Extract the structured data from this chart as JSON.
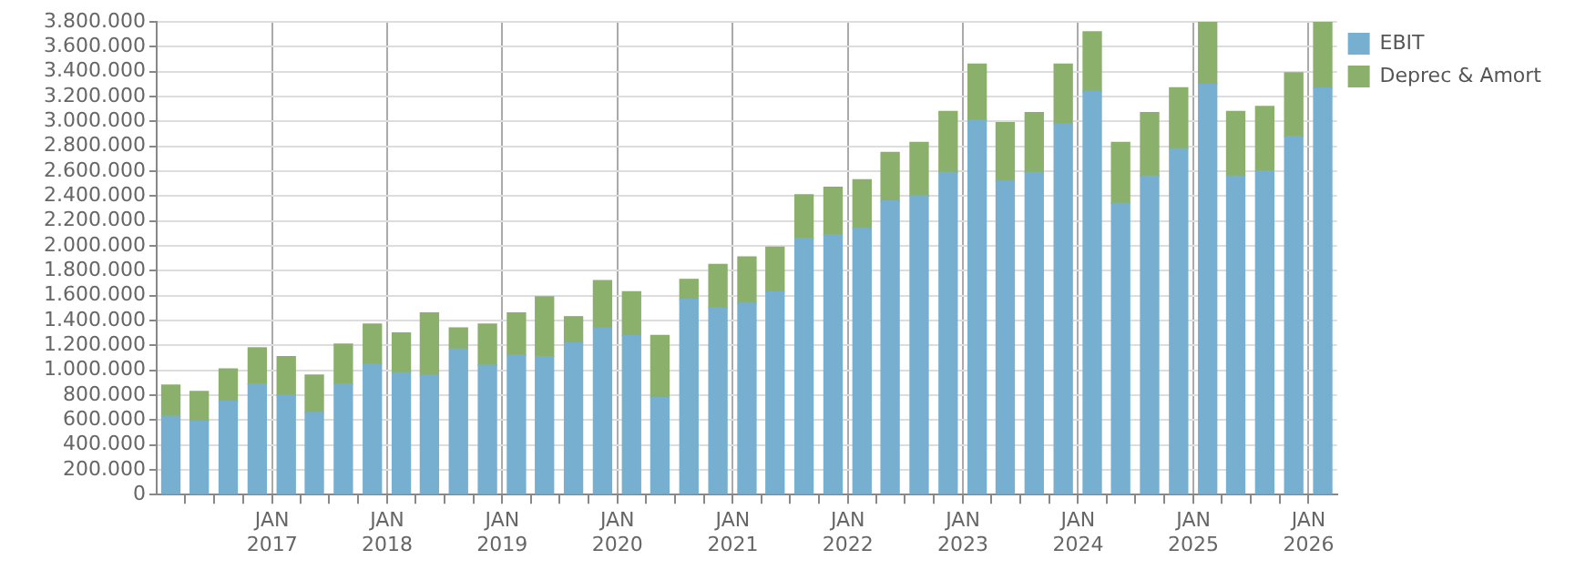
{
  "chart_data": {
    "type": "bar",
    "stacked": true,
    "legend": "top right",
    "grid": true,
    "x": [
      "2016-02-15",
      "2016-05-15",
      "2016-08-15",
      "2016-11-15",
      "2017-02-15",
      "2017-05-15",
      "2017-08-15",
      "2017-11-15",
      "2018-02-15",
      "2018-05-15",
      "2018-08-15",
      "2018-11-15",
      "2019-02-15",
      "2019-05-15",
      "2019-08-15",
      "2019-11-15",
      "2020-02-15",
      "2020-05-15",
      "2020-08-15",
      "2020-11-15",
      "2021-02-15",
      "2021-05-15",
      "2021-08-15",
      "2021-11-15",
      "2022-02-15",
      "2022-05-15",
      "2022-08-15",
      "2022-11-15",
      "2023-02-15",
      "2023-05-15",
      "2023-08-15",
      "2023-11-15",
      "2024-02-15",
      "2024-05-15",
      "2024-08-15",
      "2024-11-15",
      "2025-02-15",
      "2025-05-15",
      "2025-08-15",
      "2025-11-15",
      "2026-02-15"
    ],
    "series": [
      {
        "name": "EBIT",
        "color": "#77afd0",
        "values": [
          630000,
          590000,
          750000,
          890000,
          800000,
          660000,
          890000,
          1050000,
          980000,
          960000,
          1170000,
          1040000,
          1120000,
          1110000,
          1220000,
          1340000,
          1280000,
          780000,
          1570000,
          1500000,
          1540000,
          1630000,
          2060000,
          2090000,
          2140000,
          2360000,
          2400000,
          2590000,
          3010000,
          2520000,
          2590000,
          2980000,
          3240000,
          2340000,
          2560000,
          2780000,
          3300000,
          2560000,
          2600000,
          2880000,
          3270000
        ]
      },
      {
        "name": "Deprec & Amort",
        "color": "#8ab06c",
        "values": [
          250000,
          240000,
          260000,
          290000,
          310000,
          300000,
          320000,
          320000,
          320000,
          500000,
          170000,
          330000,
          340000,
          480000,
          210000,
          380000,
          350000,
          500000,
          160000,
          350000,
          370000,
          360000,
          350000,
          380000,
          390000,
          390000,
          430000,
          490000,
          450000,
          470000,
          480000,
          480000,
          480000,
          490000,
          510000,
          490000,
          500000,
          520000,
          520000,
          510000,
          530000
        ]
      }
    ],
    "xlim": [
      "2016-01-01",
      "2026-04-01"
    ],
    "xticks": [
      {
        "value": "2016-04-01",
        "label": null
      },
      {
        "value": "2016-07-01",
        "label": null
      },
      {
        "value": "2016-10-01",
        "label": null
      },
      {
        "value": "2017-01-01",
        "label": "JAN 2017"
      },
      {
        "value": "2017-04-01",
        "label": null
      },
      {
        "value": "2017-07-01",
        "label": null
      },
      {
        "value": "2017-10-01",
        "label": null
      },
      {
        "value": "2018-01-01",
        "label": "JAN 2018"
      },
      {
        "value": "2018-04-01",
        "label": null
      },
      {
        "value": "2018-07-01",
        "label": null
      },
      {
        "value": "2018-10-01",
        "label": null
      },
      {
        "value": "2019-01-01",
        "label": "JAN 2019"
      },
      {
        "value": "2019-04-01",
        "label": null
      },
      {
        "value": "2019-07-01",
        "label": null
      },
      {
        "value": "2019-10-01",
        "label": null
      },
      {
        "value": "2020-01-01",
        "label": "JAN 2020"
      },
      {
        "value": "2020-04-01",
        "label": null
      },
      {
        "value": "2020-07-01",
        "label": null
      },
      {
        "value": "2020-10-01",
        "label": null
      },
      {
        "value": "2021-01-01",
        "label": "JAN 2021"
      },
      {
        "value": "2021-04-01",
        "label": null
      },
      {
        "value": "2021-07-01",
        "label": null
      },
      {
        "value": "2021-10-01",
        "label": null
      },
      {
        "value": "2022-01-01",
        "label": "JAN 2022"
      },
      {
        "value": "2022-04-01",
        "label": null
      },
      {
        "value": "2022-07-01",
        "label": null
      },
      {
        "value": "2022-10-01",
        "label": null
      },
      {
        "value": "2023-01-01",
        "label": "JAN 2023"
      },
      {
        "value": "2023-04-01",
        "label": null
      },
      {
        "value": "2023-07-01",
        "label": null
      },
      {
        "value": "2023-10-01",
        "label": null
      },
      {
        "value": "2024-01-01",
        "label": "JAN 2024"
      },
      {
        "value": "2024-04-01",
        "label": null
      },
      {
        "value": "2024-07-01",
        "label": null
      },
      {
        "value": "2024-10-01",
        "label": null
      },
      {
        "value": "2025-01-01",
        "label": "JAN 2025"
      },
      {
        "value": "2025-04-01",
        "label": null
      },
      {
        "value": "2025-07-01",
        "label": null
      },
      {
        "value": "2025-10-01",
        "label": null
      },
      {
        "value": "2026-01-01",
        "label": "JAN 2026"
      }
    ],
    "ylim": [
      0,
      3800000
    ],
    "yticks": [
      {
        "value": 0,
        "label": "0"
      },
      {
        "value": 200000,
        "label": "200.000"
      },
      {
        "value": 400000,
        "label": "400.000"
      },
      {
        "value": 600000,
        "label": "600.000"
      },
      {
        "value": 800000,
        "label": "800.000"
      },
      {
        "value": 1000000,
        "label": "1.000.000"
      },
      {
        "value": 1200000,
        "label": "1.200.000"
      },
      {
        "value": 1400000,
        "label": "1.400.000"
      },
      {
        "value": 1600000,
        "label": "1.600.000"
      },
      {
        "value": 1800000,
        "label": "1.800.000"
      },
      {
        "value": 2000000,
        "label": "2.000.000"
      },
      {
        "value": 2200000,
        "label": "2.200.000"
      },
      {
        "value": 2400000,
        "label": "2.400.000"
      },
      {
        "value": 2600000,
        "label": "2.600.000"
      },
      {
        "value": 2800000,
        "label": "2.800.000"
      },
      {
        "value": 3000000,
        "label": "3.000.000"
      },
      {
        "value": 3200000,
        "label": "3.200.000"
      },
      {
        "value": 3400000,
        "label": "3.400.000"
      },
      {
        "value": 3600000,
        "label": "3.600.000"
      },
      {
        "value": 3800000,
        "label": "3.800.000"
      }
    ]
  }
}
